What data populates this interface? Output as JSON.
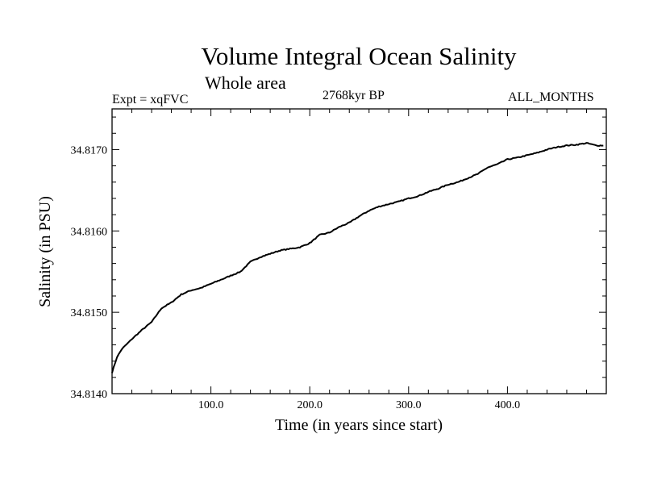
{
  "chart_data": {
    "type": "line",
    "title": "Volume Integral Ocean Salinity",
    "subtitle": "Whole area",
    "annotations": {
      "left": "Expt = xqFVC",
      "center": "2768kyr BP",
      "right": "ALL_MONTHS"
    },
    "xlabel": "Time (in years since start)",
    "ylabel": "Salinity (in PSU)",
    "xlim": [
      0,
      500
    ],
    "ylim": [
      34.814,
      34.8175
    ],
    "xticks": [
      100,
      200,
      300,
      400
    ],
    "xtick_labels": [
      "100.0",
      "200.0",
      "300.0",
      "400.0"
    ],
    "yticks": [
      34.814,
      34.815,
      34.816,
      34.817
    ],
    "ytick_labels": [
      "34.8140",
      "34.8150",
      "34.8160",
      "34.8170"
    ],
    "grid": false,
    "series": [
      {
        "name": "Salinity",
        "x": [
          0,
          5,
          10,
          20,
          30,
          40,
          50,
          60,
          70,
          80,
          90,
          100,
          110,
          120,
          130,
          140,
          150,
          160,
          170,
          180,
          190,
          200,
          210,
          220,
          230,
          240,
          250,
          260,
          270,
          280,
          290,
          300,
          310,
          320,
          330,
          340,
          350,
          360,
          370,
          380,
          390,
          400,
          410,
          420,
          430,
          440,
          450,
          460,
          470,
          480,
          490,
          497
        ],
        "values": [
          34.81426,
          34.81445,
          34.81455,
          34.81467,
          34.81478,
          34.81488,
          34.81505,
          34.81512,
          34.81522,
          34.81527,
          34.8153,
          34.81535,
          34.8154,
          34.81545,
          34.8155,
          34.81562,
          34.81568,
          34.81572,
          34.81576,
          34.81578,
          34.8158,
          34.81585,
          34.81595,
          34.81598,
          34.81605,
          34.8161,
          34.81618,
          34.81625,
          34.8163,
          34.81633,
          34.81636,
          34.8164,
          34.81643,
          34.81648,
          34.81652,
          34.81657,
          34.8166,
          34.81665,
          34.8167,
          34.81678,
          34.81682,
          34.81688,
          34.8169,
          34.81693,
          34.81696,
          34.817,
          34.81703,
          34.81705,
          34.81706,
          34.81708,
          34.81705,
          34.81705
        ]
      }
    ]
  }
}
